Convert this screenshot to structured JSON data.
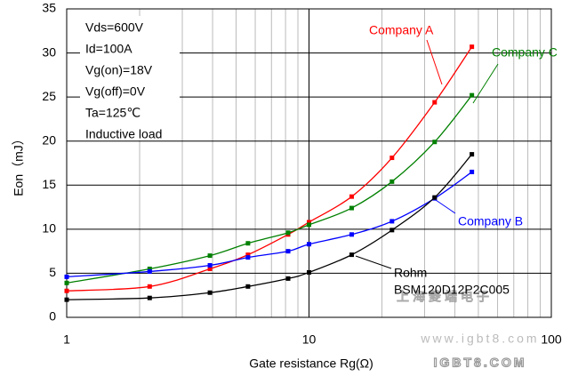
{
  "chart_data": {
    "type": "line",
    "x_label": "Gate resistance Rg(Ω)",
    "y_label": "Eon（mJ）",
    "x": [
      1,
      2.2,
      3.9,
      5.6,
      8.2,
      10,
      15,
      22,
      33,
      47
    ],
    "series": [
      {
        "name": "Company A",
        "color": "#ff0000",
        "values": [
          3.0,
          3.5,
          5.5,
          7.1,
          9.4,
          10.8,
          13.7,
          18.1,
          24.4,
          30.7
        ]
      },
      {
        "name": "Company C",
        "color": "#008000",
        "values": [
          3.9,
          5.5,
          7.0,
          8.4,
          9.6,
          10.5,
          12.4,
          15.4,
          19.9,
          25.2
        ]
      },
      {
        "name": "Company B",
        "color": "#0000ff",
        "values": [
          4.6,
          5.2,
          5.9,
          6.8,
          7.5,
          8.3,
          9.4,
          10.9,
          13.5,
          16.5
        ]
      },
      {
        "name": "Rohm",
        "color": "#000000",
        "values": [
          2.0,
          2.2,
          2.8,
          3.5,
          4.4,
          5.1,
          7.1,
          9.9,
          13.6,
          18.5
        ]
      }
    ],
    "rohm_part": "BSM120D12P2C005",
    "conditions": [
      "Vds=600V",
      "Id=100A",
      "Vg(on)=18V",
      "Vg(off)=0V",
      "Ta=125℃",
      "Inductive load"
    ],
    "watermarks": [
      "上海菱端电子",
      "www.igbt8.com",
      "IGBT8.COM"
    ],
    "xlim": [
      1,
      100
    ],
    "xticks": [
      1,
      10,
      100
    ],
    "x_log": true,
    "ylim": [
      0,
      35
    ],
    "yticks": [
      0,
      5,
      10,
      15,
      20,
      25,
      30,
      35
    ],
    "grid": true
  }
}
